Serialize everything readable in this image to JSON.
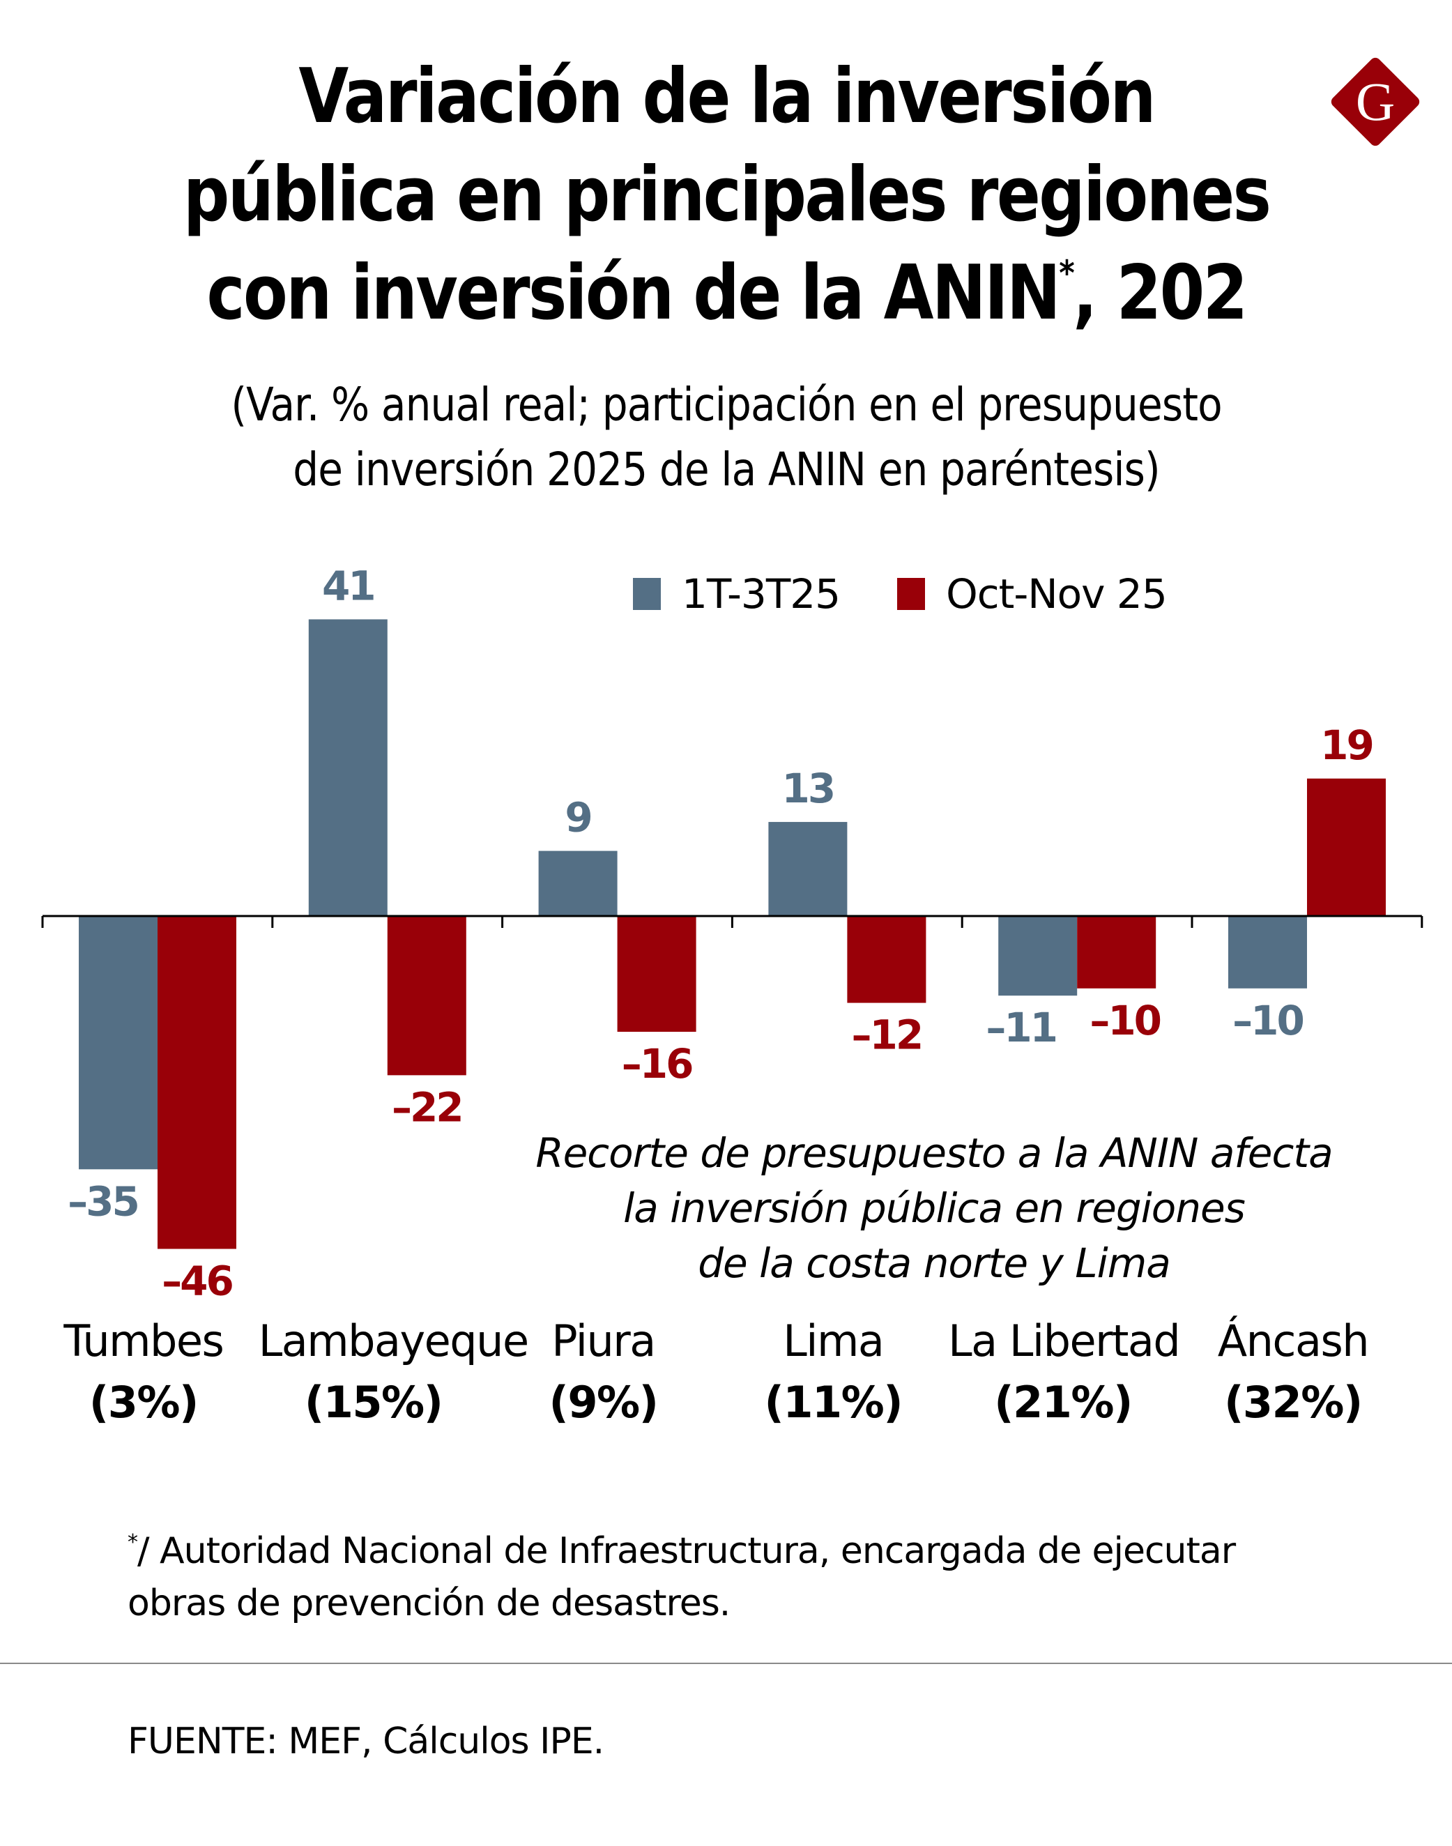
{
  "header": {
    "title_lines": [
      "Variación de la inversión",
      "pública en principales regiones",
      "con inversión de la ANIN"
    ],
    "title_asterisk": "*",
    "title_suffix": ", 202",
    "subtitle_lines": [
      "(Var. % anual real; participación en el presupuesto",
      "de inversión 2025 de la ANIN en paréntesis)"
    ],
    "logo": {
      "icon": "gestion-g-diamond-logo",
      "letter": "G",
      "color": "#990008"
    }
  },
  "colors": {
    "series1": "#546f85",
    "series2": "#990008",
    "axis": "#000000",
    "divider": "#8a8a8a"
  },
  "chart_data": {
    "type": "bar",
    "title": "Variación de la inversión pública en principales regiones con inversión de la ANIN*, 202",
    "subtitle": "(Var. % anual real; participación en el presupuesto de inversión 2025 de la ANIN en paréntesis)",
    "categories": [
      "Tumbes",
      "Lambayeque",
      "Piura",
      "Lima",
      "La Libertad",
      "Áncash"
    ],
    "category_shares": [
      "(3%)",
      "(15%)",
      "(9%)",
      "(11%)",
      "(21%)",
      "(32%)"
    ],
    "series": [
      {
        "name": "1T-3T25",
        "values": [
          -35,
          41,
          9,
          13,
          -11,
          -10
        ],
        "labels": [
          "-35",
          "41",
          "9",
          "13",
          "-11",
          "-10"
        ]
      },
      {
        "name": "Oct-Nov 25",
        "values": [
          -46,
          -22,
          -16,
          -12,
          -10,
          19
        ],
        "labels": [
          "-46",
          "-22",
          "-16",
          "-12",
          "-10",
          "19"
        ]
      }
    ],
    "xlabel": "",
    "ylabel": "Var. % anual real",
    "ylim": [
      -50,
      45
    ],
    "grid": false,
    "y_axis_visible": false,
    "legend": "top-right",
    "annotation": [
      "Recorte de presupuesto a la ANIN afecta",
      "la inversión pública en regiones",
      "de la costa norte y Lima"
    ]
  },
  "footer": {
    "footnote_marker": "*",
    "footnote_lines": [
      "/ Autoridad Nacional de Infraestructura, encargada de ejecutar",
      "obras de prevención de desastres."
    ],
    "source": "FUENTE: MEF, Cálculos IPE."
  }
}
